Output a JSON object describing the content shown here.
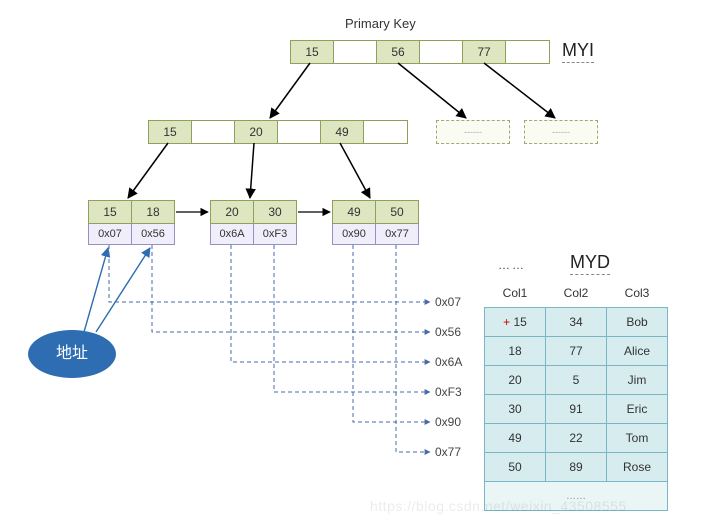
{
  "title": "Primary Key",
  "labels": {
    "myi": "MYI",
    "myd": "MYD",
    "address": "地址",
    "ellipsis": "……"
  },
  "colors": {
    "node_fill": "#dde6c0",
    "node_border": "#8fa05a",
    "ptr_fill": "#efeefa",
    "ptr_border": "#9a8fc0",
    "ellipse": "#2f6db3",
    "ellipse_text": "#ffffff",
    "table_fill": "#d6ecef",
    "table_border": "#7bb6c4",
    "arrow": "#000000",
    "dashed": "#4a6aa8",
    "blue_arrow": "#2f6db3"
  },
  "root": {
    "cells": [
      "15",
      "",
      "56",
      "",
      "77",
      ""
    ]
  },
  "mid": {
    "cells": [
      "15",
      "",
      "20",
      "",
      "49",
      ""
    ]
  },
  "leaves": [
    {
      "keys": [
        "15",
        "18"
      ],
      "ptrs": [
        "0x07",
        "0x56"
      ]
    },
    {
      "keys": [
        "20",
        "30"
      ],
      "ptrs": [
        "0x6A",
        "0xF3"
      ]
    },
    {
      "keys": [
        "49",
        "50"
      ],
      "ptrs": [
        "0x90",
        "0x77"
      ]
    }
  ],
  "addresses": [
    "0x07",
    "0x56",
    "0x6A",
    "0xF3",
    "0x90",
    "0x77"
  ],
  "table": {
    "columns": [
      "Col1",
      "Col2",
      "Col3"
    ],
    "rows": [
      [
        "15",
        "34",
        "Bob"
      ],
      [
        "18",
        "77",
        "Alice"
      ],
      [
        "20",
        "5",
        "Jim"
      ],
      [
        "30",
        "91",
        "Eric"
      ],
      [
        "49",
        "22",
        "Tom"
      ],
      [
        "50",
        "89",
        "Rose"
      ]
    ],
    "first_row_marker": "+"
  },
  "watermark": "https://blog.csdn.net/weixin_43508555"
}
